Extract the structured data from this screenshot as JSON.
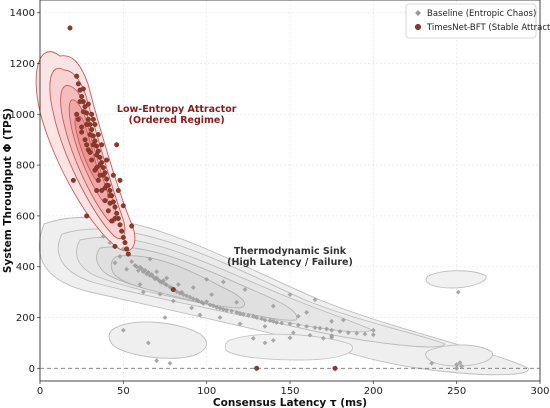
{
  "chart_data": {
    "type": "scatter",
    "title": "",
    "xlabel": "Consensus Latency τ (ms)",
    "ylabel": "System Throughput Φ (TPS)",
    "xlim": [
      0,
      300
    ],
    "ylim": [
      -50,
      1450
    ],
    "xticks": [
      0,
      50,
      100,
      150,
      200,
      250,
      300
    ],
    "yticks": [
      0,
      200,
      400,
      600,
      800,
      1000,
      1200,
      1400
    ],
    "grid": true,
    "legend_position": "top-right",
    "reference_line_y": 0,
    "annotations": [
      {
        "id": "attractor",
        "lines": [
          "Low-Entropy Attractor",
          "(Ordered Regime)"
        ],
        "x": 82,
        "y": 1010,
        "color": "#8b1a1a"
      },
      {
        "id": "sink",
        "lines": [
          "Thermodynamic Sink",
          "(High Latency / Failure)"
        ],
        "x": 150,
        "y": 450,
        "color": "#333333"
      }
    ],
    "series": [
      {
        "name": "Baseline (Entropic Chaos)",
        "marker": "diamond",
        "color": "#9a9a9a",
        "contour_color": "#b5b5b5",
        "points": [
          [
            52,
            390
          ],
          [
            55,
            420
          ],
          [
            57,
            405
          ],
          [
            58,
            400
          ],
          [
            59,
            385
          ],
          [
            60,
            398
          ],
          [
            61,
            392
          ],
          [
            62,
            380
          ],
          [
            63,
            386
          ],
          [
            64,
            372
          ],
          [
            65,
            378
          ],
          [
            66,
            365
          ],
          [
            67,
            370
          ],
          [
            68,
            360
          ],
          [
            69,
            352
          ],
          [
            70,
            356
          ],
          [
            71,
            348
          ],
          [
            72,
            342
          ],
          [
            73,
            338
          ],
          [
            74,
            345
          ],
          [
            75,
            332
          ],
          [
            76,
            328
          ],
          [
            78,
            320
          ],
          [
            79,
            315
          ],
          [
            80,
            310
          ],
          [
            82,
            302
          ],
          [
            84,
            296
          ],
          [
            85,
            300
          ],
          [
            86,
            290
          ],
          [
            88,
            285
          ],
          [
            90,
            280
          ],
          [
            92,
            274
          ],
          [
            94,
            270
          ],
          [
            95,
            265
          ],
          [
            97,
            260
          ],
          [
            98,
            255
          ],
          [
            100,
            262
          ],
          [
            102,
            250
          ],
          [
            104,
            246
          ],
          [
            106,
            240
          ],
          [
            108,
            236
          ],
          [
            110,
            232
          ],
          [
            112,
            228
          ],
          [
            115,
            225
          ],
          [
            118,
            220
          ],
          [
            120,
            215
          ],
          [
            122,
            212
          ],
          [
            125,
            208
          ],
          [
            128,
            205
          ],
          [
            130,
            200
          ],
          [
            133,
            196
          ],
          [
            135,
            190
          ],
          [
            138,
            188
          ],
          [
            140,
            185
          ],
          [
            142,
            180
          ],
          [
            145,
            178
          ],
          [
            150,
            175
          ],
          [
            155,
            170
          ],
          [
            160,
            165
          ],
          [
            165,
            160
          ],
          [
            168,
            158
          ],
          [
            172,
            155
          ],
          [
            175,
            150
          ],
          [
            180,
            145
          ],
          [
            185,
            140
          ],
          [
            190,
            138
          ],
          [
            195,
            135
          ],
          [
            200,
            132
          ],
          [
            66,
            430
          ],
          [
            70,
            380
          ],
          [
            76,
            355
          ],
          [
            83,
            330
          ],
          [
            92,
            318
          ],
          [
            103,
            290
          ],
          [
            118,
            260
          ],
          [
            140,
            245
          ],
          [
            160,
            220
          ],
          [
            182,
            190
          ],
          [
            100,
            350
          ],
          [
            110,
            340
          ],
          [
            123,
            310
          ],
          [
            150,
            290
          ],
          [
            165,
            270
          ],
          [
            155,
            205
          ],
          [
            175,
            185
          ],
          [
            170,
            118
          ],
          [
            175,
            122
          ],
          [
            60,
            330
          ],
          [
            62,
            300
          ],
          [
            72,
            292
          ],
          [
            80,
            265
          ],
          [
            91,
            238
          ],
          [
            96,
            210
          ],
          [
            108,
            200
          ],
          [
            120,
            175
          ],
          [
            135,
            165
          ],
          [
            150,
            120
          ],
          [
            45,
            415
          ],
          [
            48,
            440
          ],
          [
            50,
            470
          ],
          [
            42,
            495
          ],
          [
            38,
            520
          ],
          [
            50,
            150
          ],
          [
            65,
            100
          ],
          [
            70,
            30
          ],
          [
            78,
            20
          ],
          [
            75,
            200
          ],
          [
            135,
            100
          ],
          [
            140,
            110
          ],
          [
            128,
            118
          ],
          [
            152,
            140
          ],
          [
            162,
            130
          ],
          [
            175,
            128
          ],
          [
            200,
            150
          ],
          [
            250,
            15
          ],
          [
            252,
            22
          ],
          [
            250,
            0
          ],
          [
            253,
            8
          ],
          [
            251,
            300
          ],
          [
            235,
            20
          ]
        ]
      },
      {
        "name": "TimesNet-BFT (Stable Attractor)",
        "marker": "circle",
        "color": "#8b3a2a",
        "edge_color": "#6b2a1a",
        "contour_color": "#cc4a4a",
        "points": [
          [
            18,
            1340
          ],
          [
            22,
            1150
          ],
          [
            23,
            1120
          ],
          [
            24,
            1095
          ],
          [
            25,
            1070
          ],
          [
            26,
            1050
          ],
          [
            27,
            1030
          ],
          [
            28,
            1005
          ],
          [
            29,
            980
          ],
          [
            30,
            960
          ],
          [
            31,
            940
          ],
          [
            32,
            915
          ],
          [
            33,
            895
          ],
          [
            34,
            875
          ],
          [
            35,
            855
          ],
          [
            36,
            830
          ],
          [
            37,
            810
          ],
          [
            38,
            790
          ],
          [
            39,
            770
          ],
          [
            40,
            745
          ],
          [
            41,
            720
          ],
          [
            42,
            700
          ],
          [
            43,
            680
          ],
          [
            44,
            655
          ],
          [
            45,
            635
          ],
          [
            46,
            610
          ],
          [
            47,
            590
          ],
          [
            48,
            565
          ],
          [
            49,
            540
          ],
          [
            50,
            515
          ],
          [
            51,
            495
          ],
          [
            52,
            470
          ],
          [
            53,
            450
          ],
          [
            24,
            1050
          ],
          [
            26,
            1010
          ],
          [
            28,
            960
          ],
          [
            30,
            920
          ],
          [
            32,
            880
          ],
          [
            34,
            840
          ],
          [
            36,
            800
          ],
          [
            38,
            760
          ],
          [
            40,
            720
          ],
          [
            42,
            680
          ],
          [
            25,
            950
          ],
          [
            27,
            900
          ],
          [
            29,
            860
          ],
          [
            31,
            820
          ],
          [
            33,
            780
          ],
          [
            35,
            740
          ],
          [
            37,
            700
          ],
          [
            39,
            660
          ],
          [
            41,
            620
          ],
          [
            43,
            580
          ],
          [
            22,
            1000
          ],
          [
            23,
            980
          ],
          [
            25,
            930
          ],
          [
            28,
            880
          ],
          [
            30,
            850
          ],
          [
            34,
            790
          ],
          [
            36,
            760
          ],
          [
            39,
            710
          ],
          [
            42,
            650
          ],
          [
            45,
            590
          ],
          [
            26,
            1100
          ],
          [
            29,
            1040
          ],
          [
            31,
            1000
          ],
          [
            33,
            960
          ],
          [
            35,
            920
          ],
          [
            37,
            880
          ],
          [
            40,
            820
          ],
          [
            44,
            760
          ],
          [
            47,
            700
          ],
          [
            50,
            640
          ],
          [
            20,
            740
          ],
          [
            32,
            980
          ],
          [
            46,
            880
          ],
          [
            48,
            740
          ],
          [
            55,
            560
          ],
          [
            45,
            480
          ],
          [
            34,
            700
          ],
          [
            28,
            600
          ],
          [
            80,
            310
          ],
          [
            130,
            0
          ],
          [
            177,
            0
          ]
        ]
      }
    ]
  }
}
